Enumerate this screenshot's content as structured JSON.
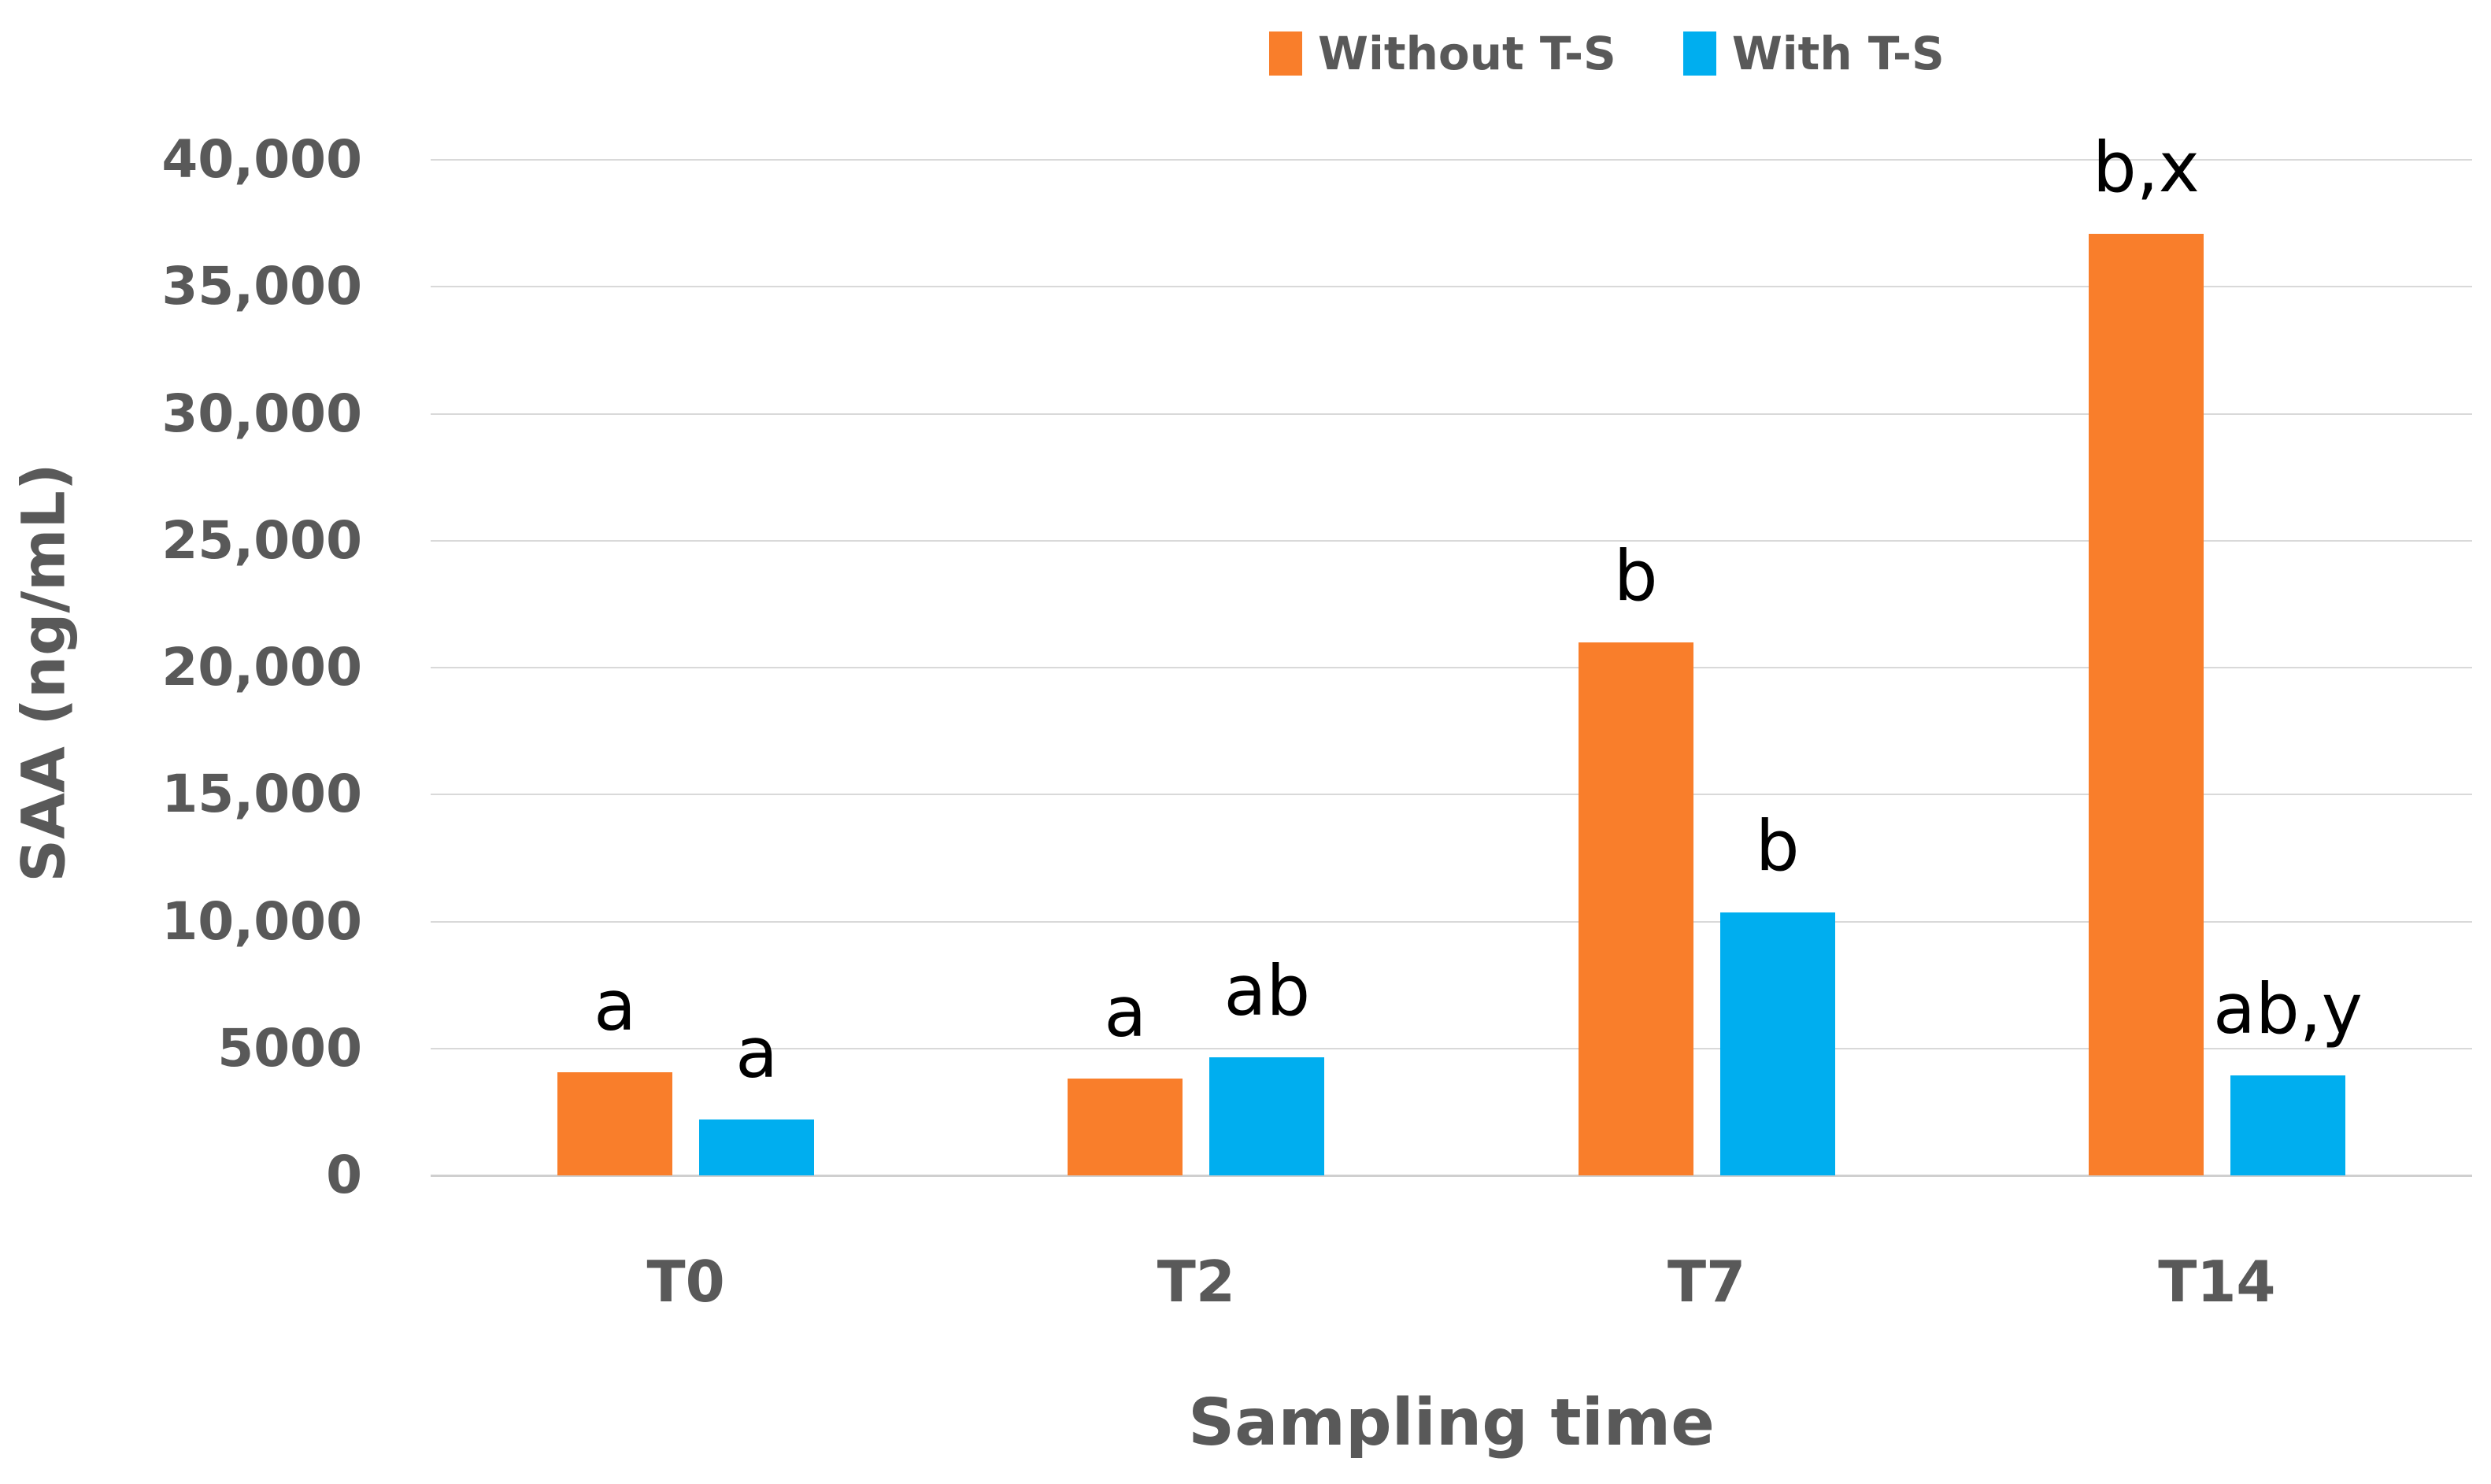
{
  "chart_data": {
    "type": "bar",
    "title": "",
    "categories": [
      "T0",
      "T2",
      "T7",
      "T14"
    ],
    "series": [
      {
        "name": "Without T-S",
        "color": "#F97E2B",
        "values": [
          4050,
          3800,
          21000,
          37100
        ],
        "point_labels": [
          "a",
          "a",
          "b",
          "b,x"
        ]
      },
      {
        "name": "With T-S",
        "color": "#00AEEF",
        "values": [
          2200,
          4650,
          10350,
          3950
        ],
        "point_labels": [
          "a",
          "ab",
          "b",
          "ab,y"
        ]
      }
    ],
    "xlabel": "Sampling time",
    "ylabel": "SAA (ng/mL)",
    "ylim": [
      0,
      40000
    ],
    "ytick_interval": 5000,
    "ytick_labels": [
      "0",
      "5000",
      "10,000",
      "15,000",
      "20,000",
      "25,000",
      "30,000",
      "35,000",
      "40,000"
    ],
    "grid": true,
    "legend_position": "top-center"
  },
  "colors": {
    "axis_text": "#595959",
    "gridline": "#d9d9d9",
    "axis_line": "#cfcfcf",
    "annotation_text": "#000000",
    "background": "#ffffff"
  }
}
